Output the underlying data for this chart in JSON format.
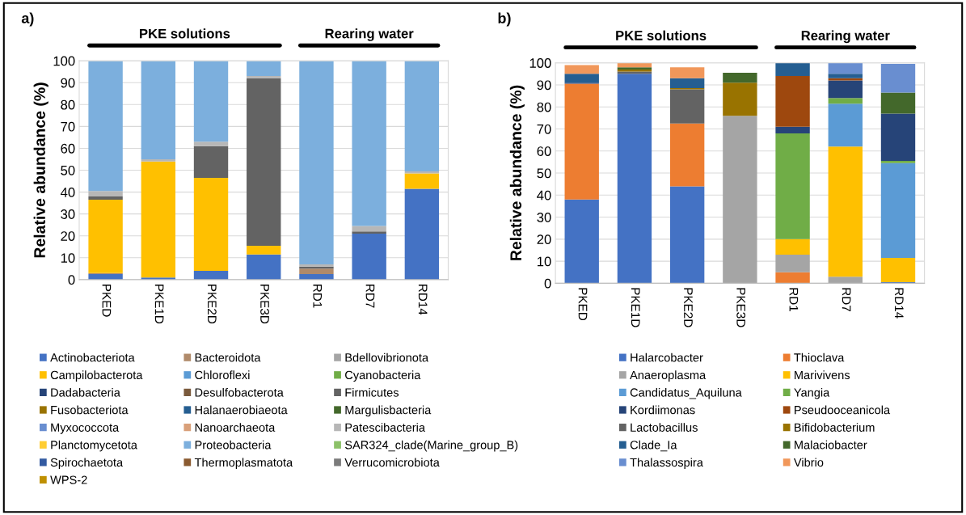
{
  "chart_data": [
    {
      "type": "bar",
      "title": "a)",
      "ylabel": "Relative abundance (%)",
      "stacked": true,
      "categories": [
        "PKED",
        "PKE1D",
        "PKE2D",
        "PKE3D",
        "RD1",
        "RD7",
        "RD14"
      ],
      "ylim": [
        0,
        100
      ],
      "yticks": [
        0,
        10,
        20,
        30,
        40,
        50,
        60,
        70,
        80,
        90,
        100
      ],
      "grid": "y",
      "legend": "bottom",
      "annotations": [
        "PKE solutions",
        "Rearing water"
      ],
      "series": [
        {
          "name": "Actinobacteriota",
          "color": "#4472c4",
          "values": [
            2.5,
            1,
            4,
            11.5,
            2.5,
            21,
            41.5
          ]
        },
        {
          "name": "Bacteroidota",
          "color": "#b08a6a",
          "values": [
            0.5,
            0,
            0,
            0,
            2.5,
            0,
            0
          ]
        },
        {
          "name": "Bdellovibrionota",
          "color": "#a5a5a5",
          "values": [
            0,
            0,
            0,
            0,
            0,
            0,
            0
          ]
        },
        {
          "name": "Campilobacterota",
          "color": "#ffc000",
          "values": [
            33.5,
            53,
            42.5,
            4,
            0,
            0,
            7
          ]
        },
        {
          "name": "Chloroflexi",
          "color": "#5b9bd5",
          "values": [
            0,
            0,
            0,
            0,
            0,
            0,
            0
          ]
        },
        {
          "name": "Cyanobacteria",
          "color": "#70ad47",
          "values": [
            0,
            0,
            0,
            0,
            0,
            0,
            0
          ]
        },
        {
          "name": "Dadabacteria",
          "color": "#264478",
          "values": [
            0,
            0,
            0,
            0,
            0,
            0,
            0
          ]
        },
        {
          "name": "Desulfobacterota",
          "color": "#7a5a3c",
          "values": [
            0,
            0,
            0,
            0,
            0,
            0,
            0
          ]
        },
        {
          "name": "Firmicutes",
          "color": "#636363",
          "values": [
            1.5,
            0,
            14.5,
            76.5,
            1,
            1,
            0
          ]
        },
        {
          "name": "Fusobacteriota",
          "color": "#997300",
          "values": [
            0,
            0,
            0,
            0,
            0,
            0,
            0
          ]
        },
        {
          "name": "Halanaerobiaeota",
          "color": "#255e91",
          "values": [
            0,
            0,
            0,
            0,
            0,
            0,
            0
          ]
        },
        {
          "name": "Margulisbacteria",
          "color": "#43682b",
          "values": [
            0,
            0,
            0,
            0,
            0,
            0,
            0
          ]
        },
        {
          "name": "Myxococcota",
          "color": "#698ed0",
          "values": [
            0,
            0,
            0,
            0,
            0,
            0,
            0
          ]
        },
        {
          "name": "Nanoarchaeota",
          "color": "#d9a07a",
          "values": [
            0,
            0,
            0,
            0,
            0,
            0,
            0
          ]
        },
        {
          "name": "Patescibacteria",
          "color": "#b7b7b7",
          "values": [
            2.5,
            1,
            2,
            1,
            1,
            2.5,
            1
          ]
        },
        {
          "name": "Planctomycetota",
          "color": "#ffcd33",
          "values": [
            0,
            0,
            0,
            0,
            0,
            0,
            0
          ]
        },
        {
          "name": "Proteobacteria",
          "color": "#7cafdd",
          "values": [
            59.5,
            45,
            37,
            7,
            93,
            75.5,
            50.5
          ]
        },
        {
          "name": "SAR324_clade(Marine_group_B)",
          "color": "#8cc168",
          "values": [
            0,
            0,
            0,
            0,
            0,
            0,
            0
          ]
        },
        {
          "name": "Spirochaetota",
          "color": "#335aa1",
          "values": [
            0,
            0,
            0,
            0,
            0,
            0,
            0
          ]
        },
        {
          "name": "Thermoplasmatota",
          "color": "#8a5a30",
          "values": [
            0,
            0,
            0,
            0,
            0,
            0,
            0
          ]
        },
        {
          "name": "Verrucomicrobiota",
          "color": "#7b7b7b",
          "values": [
            0,
            0,
            0,
            0,
            0,
            0,
            0
          ]
        },
        {
          "name": "WPS-2",
          "color": "#bf9000",
          "values": [
            0,
            0,
            0,
            0,
            0,
            0,
            0
          ]
        }
      ]
    },
    {
      "type": "bar",
      "title": "b)",
      "ylabel": "Relative abundance (%)",
      "stacked": true,
      "categories": [
        "PKED",
        "PKE1D",
        "PKE2D",
        "PKE3D",
        "RD1",
        "RD7",
        "RD14"
      ],
      "ylim": [
        0,
        100
      ],
      "yticks": [
        0,
        10,
        20,
        30,
        40,
        50,
        60,
        70,
        80,
        90,
        100
      ],
      "grid": "y",
      "legend": "bottom",
      "annotations": [
        "PKE solutions",
        "Rearing water"
      ],
      "series": [
        {
          "name": "Halarcobacter",
          "color": "#4472c4",
          "values": [
            38,
            95,
            44,
            0,
            0,
            0,
            0.5
          ]
        },
        {
          "name": "Thioclava",
          "color": "#ed7d31",
          "values": [
            52.5,
            0,
            28.5,
            0,
            5,
            0,
            0
          ]
        },
        {
          "name": "Anaeroplasma",
          "color": "#a5a5a5",
          "values": [
            0,
            0,
            0,
            76,
            8,
            3,
            0
          ]
        },
        {
          "name": "Marivivens",
          "color": "#ffc000",
          "values": [
            0,
            0,
            0,
            0,
            7,
            59,
            11
          ]
        },
        {
          "name": "Candidatus_Aquiluna",
          "color": "#5b9bd5",
          "values": [
            0,
            0,
            0,
            0,
            0,
            19.5,
            43
          ]
        },
        {
          "name": "Yangia",
          "color": "#70ad47",
          "values": [
            0,
            0,
            0,
            0,
            48,
            2.5,
            1
          ]
        },
        {
          "name": "Kordiimonas",
          "color": "#264478",
          "values": [
            0.5,
            0,
            0,
            0,
            3,
            8,
            21.5
          ]
        },
        {
          "name": "Pseudooceanicola",
          "color": "#9e480e",
          "values": [
            0,
            0,
            0,
            0,
            23,
            1,
            0
          ]
        },
        {
          "name": "Lactobacillus",
          "color": "#636363",
          "values": [
            0,
            1,
            15.5,
            0,
            0,
            0,
            0
          ]
        },
        {
          "name": "Bifidobacterium",
          "color": "#997300",
          "values": [
            0,
            1,
            0.5,
            15,
            0,
            0,
            0
          ]
        },
        {
          "name": "Clade_Ia",
          "color": "#255e91",
          "values": [
            4,
            0,
            4.5,
            0,
            6,
            2,
            0
          ]
        },
        {
          "name": "Malaciobacter",
          "color": "#43682b",
          "values": [
            0,
            1,
            0,
            4.5,
            0,
            0,
            9.5
          ]
        },
        {
          "name": "Thalassospira",
          "color": "#698ed0",
          "values": [
            0,
            0,
            0,
            0,
            0,
            5,
            13
          ]
        },
        {
          "name": "Vibrio",
          "color": "#f1975a",
          "values": [
            4,
            2,
            5,
            0,
            0,
            0,
            0
          ]
        }
      ]
    }
  ]
}
